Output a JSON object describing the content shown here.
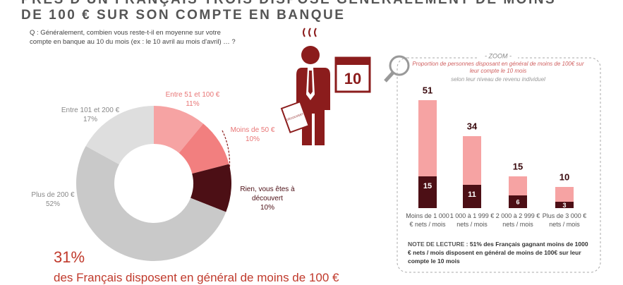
{
  "header": {
    "title": [
      "PRÈS D'UN FRANÇAIS TROIS DISPOSE GÉNÉRALEMENT DE MOINS",
      "DE 100 € SUR SON COMPTE EN BANQUE"
    ],
    "question": "Q : Généralement, combien vous reste-t-il en moyenne sur votre compte en banque au 10 du mois (ex : le 10 avril au mois d'avril) … ?"
  },
  "illustration": {
    "calendar": "10",
    "paper": "DÉCOUVERT"
  },
  "chart_data": [
    {
      "type": "pie",
      "categories": [
        "Entre 51 et 100 €",
        "Moins de 50 €",
        "Rien, vous êtes à découvert",
        "Plus de 200 €",
        "Entre 101 et 200 €"
      ],
      "values": [
        11,
        10,
        10,
        52,
        17
      ],
      "value_labels": [
        "11%",
        "10%",
        "10%",
        "52%",
        "17%"
      ],
      "colors": [
        "#f6a3a3",
        "#f27f7f",
        "#4c0f15",
        "#c9c9c9",
        "#dedede"
      ],
      "annotations": [
        "31%",
        "des Français disposent en général de moins de 100 €"
      ]
    },
    {
      "type": "bar",
      "title": "- ZOOM -",
      "subtitle": [
        "Proportion de personnes disposant en général de moins de 100€ sur leur compte le 10 mois",
        "selon leur niveau de revenu individuel"
      ],
      "categories": [
        "Moins de 1 000 € nets / mois",
        "1 000 à 1 999 € nets / mois",
        "2 000 à 2 999 € nets / mois",
        "Plus de 3 000 € nets / mois"
      ],
      "series": [
        {
          "color": "#f6a3a3",
          "values": [
            51,
            34,
            15,
            10
          ]
        },
        {
          "color": "#4c0f15",
          "values": [
            15,
            11,
            6,
            3
          ]
        }
      ],
      "note_label": "NOTE DE LECTURE :",
      "note": "51% des Français gagnant moins de 1000 € nets / mois disposent en général de moins de 100€ sur leur compte le 10 mois"
    }
  ]
}
